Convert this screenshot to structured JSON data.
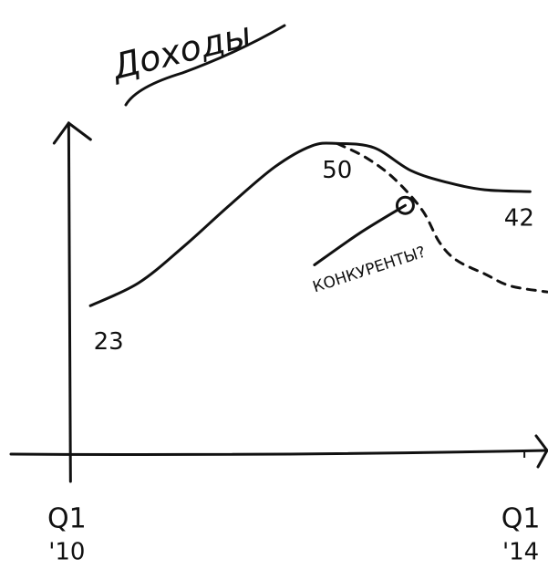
{
  "chart_data": {
    "type": "line",
    "title": "Доходы",
    "annotation": "КОНКУРЕНТЫ?",
    "xlim": [
      -2.1,
      16.8
    ],
    "ylim": [
      -1.7,
      53.4
    ],
    "xticks": [
      {
        "value": 0,
        "label": "Q1",
        "sublabel": "'10"
      },
      {
        "value": 16,
        "label": "Q1",
        "sublabel": "'14"
      }
    ],
    "series": [
      {
        "color": "#111111",
        "dashed": false,
        "x": [
          0.7,
          2.4,
          4.0,
          5.6,
          7.2,
          8.5,
          9.4,
          10.7,
          12.0,
          13.3,
          14.6,
          16.2
        ],
        "values": [
          23,
          26.8,
          32.9,
          39.7,
          46.1,
          49.6,
          50,
          49.3,
          45.5,
          43.5,
          42.3,
          42
        ],
        "labeled_points": [
          0,
          6,
          11
        ]
      },
      {
        "color": "#111111",
        "dashed": true,
        "x": [
          9.4,
          10.4,
          11.4,
          12.4,
          13.0,
          13.6,
          14.6,
          15.5,
          16.8
        ],
        "values": [
          50,
          47.7,
          44.2,
          38.9,
          33.6,
          30.6,
          28.3,
          26.3,
          25.3
        ]
      },
      {
        "color": "#111111",
        "dashed": false,
        "end_marker": true,
        "x": [
          8.6,
          10.2,
          11.8
        ],
        "values": [
          29.8,
          35.1,
          39.7
        ]
      }
    ]
  }
}
